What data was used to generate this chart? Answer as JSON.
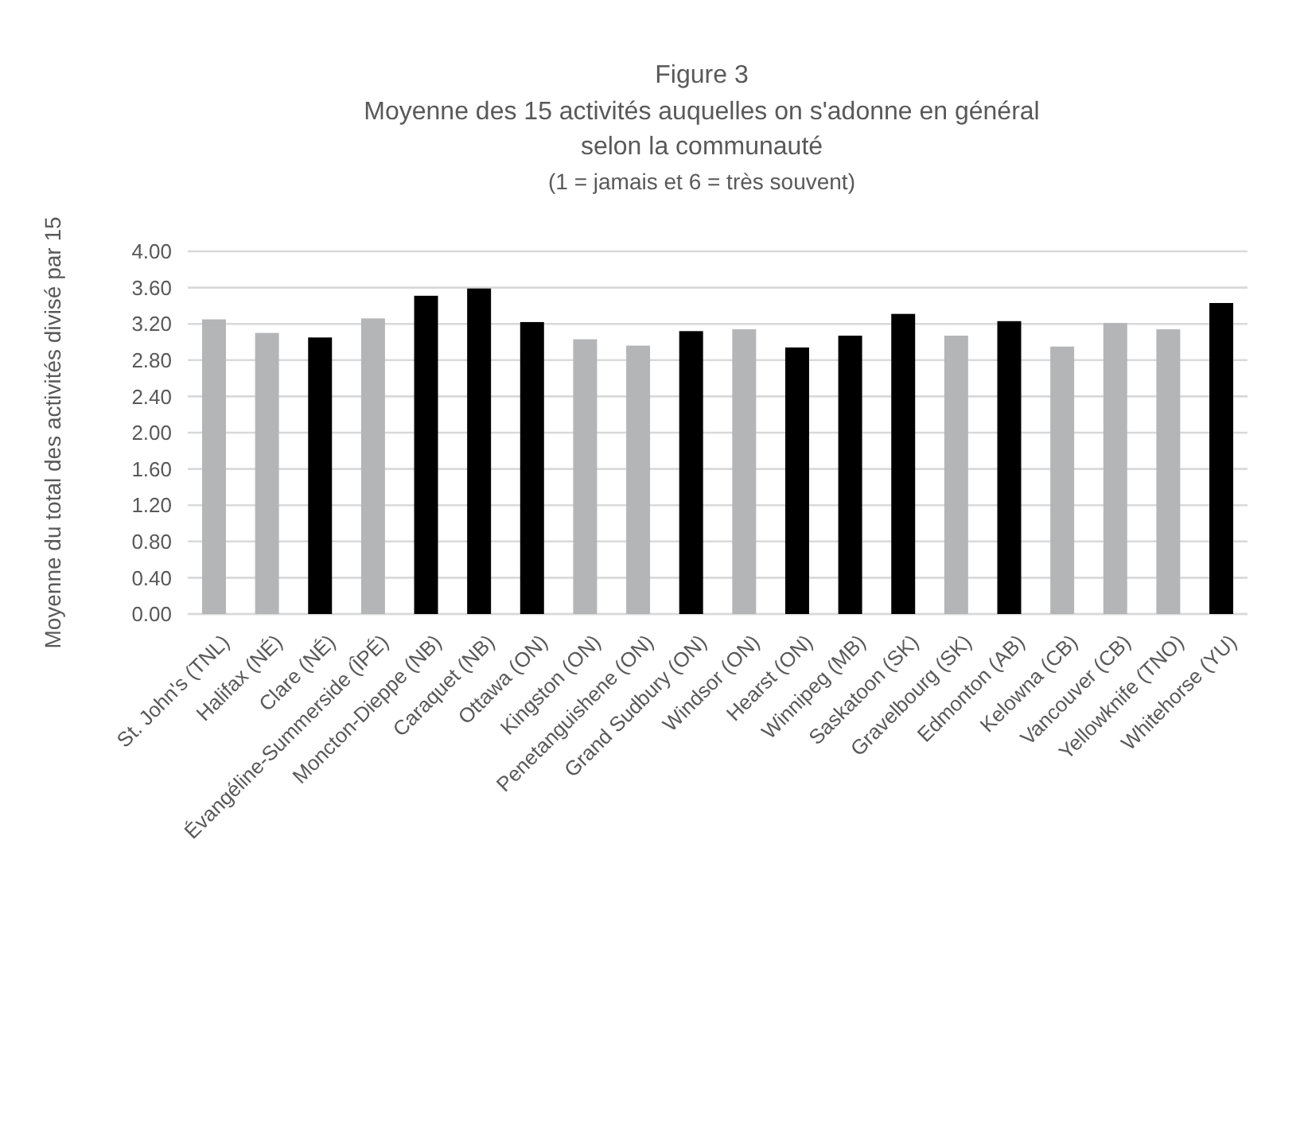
{
  "chart_data": {
    "type": "bar",
    "title": "Figure 3",
    "subtitle": "Moyenne des 15 activités auquelles on s'adonne en général\nselon la communauté\n(1 = jamais et 6 = très souvent)",
    "ylabel": "Moyenne du total des activités divisé par 15",
    "categories": [
      "St. John's (TNL)",
      "Halifax (NÉ)",
      "Clare (NÉ)",
      "Évangéline-Summerside (ÎPÉ)",
      "Moncton-Dieppe (NB)",
      "Caraquet (NB)",
      "Ottawa (ON)",
      "Kingston (ON)",
      "Penetanguishene (ON)",
      "Grand Sudbury (ON)",
      "Windsor (ON)",
      "Hearst (ON)",
      "Winnipeg (MB)",
      "Saskatoon (SK)",
      "Gravelbourg (SK)",
      "Edmonton (AB)",
      "Kelowna (CB)",
      "Vancouver (CB)",
      "Yellowknife (TNO)",
      "Whitehorse (YU)"
    ],
    "values": [
      3.25,
      3.1,
      3.05,
      3.26,
      3.51,
      3.59,
      3.22,
      3.03,
      2.96,
      3.12,
      3.14,
      2.94,
      3.07,
      3.31,
      3.07,
      3.23,
      2.95,
      3.21,
      3.14,
      3.43
    ],
    "colors": [
      "#b4b5b7",
      "#b4b5b7",
      "#000000",
      "#b4b5b7",
      "#000000",
      "#000000",
      "#000000",
      "#b4b5b7",
      "#b4b5b7",
      "#000000",
      "#b4b5b7",
      "#000000",
      "#000000",
      "#000000",
      "#b4b5b7",
      "#000000",
      "#b4b5b7",
      "#b4b5b7",
      "#b4b5b7",
      "#000000"
    ],
    "ylim": [
      0,
      4
    ],
    "yticks": [
      {
        "value": 0,
        "label": "0.00"
      },
      {
        "value": 0.4,
        "label": "0.40"
      },
      {
        "value": 0.8,
        "label": "0.80"
      },
      {
        "value": 1.2,
        "label": "1.20"
      },
      {
        "value": 1.6,
        "label": "1.60"
      },
      {
        "value": 2,
        "label": "2.00"
      },
      {
        "value": 2.4,
        "label": "2.40"
      },
      {
        "value": 2.8,
        "label": "2.80"
      },
      {
        "value": 3.2,
        "label": "3.20"
      },
      {
        "value": 3.6,
        "label": "3.60"
      },
      {
        "value": 4,
        "label": "4.00"
      }
    ],
    "grid": "y"
  }
}
